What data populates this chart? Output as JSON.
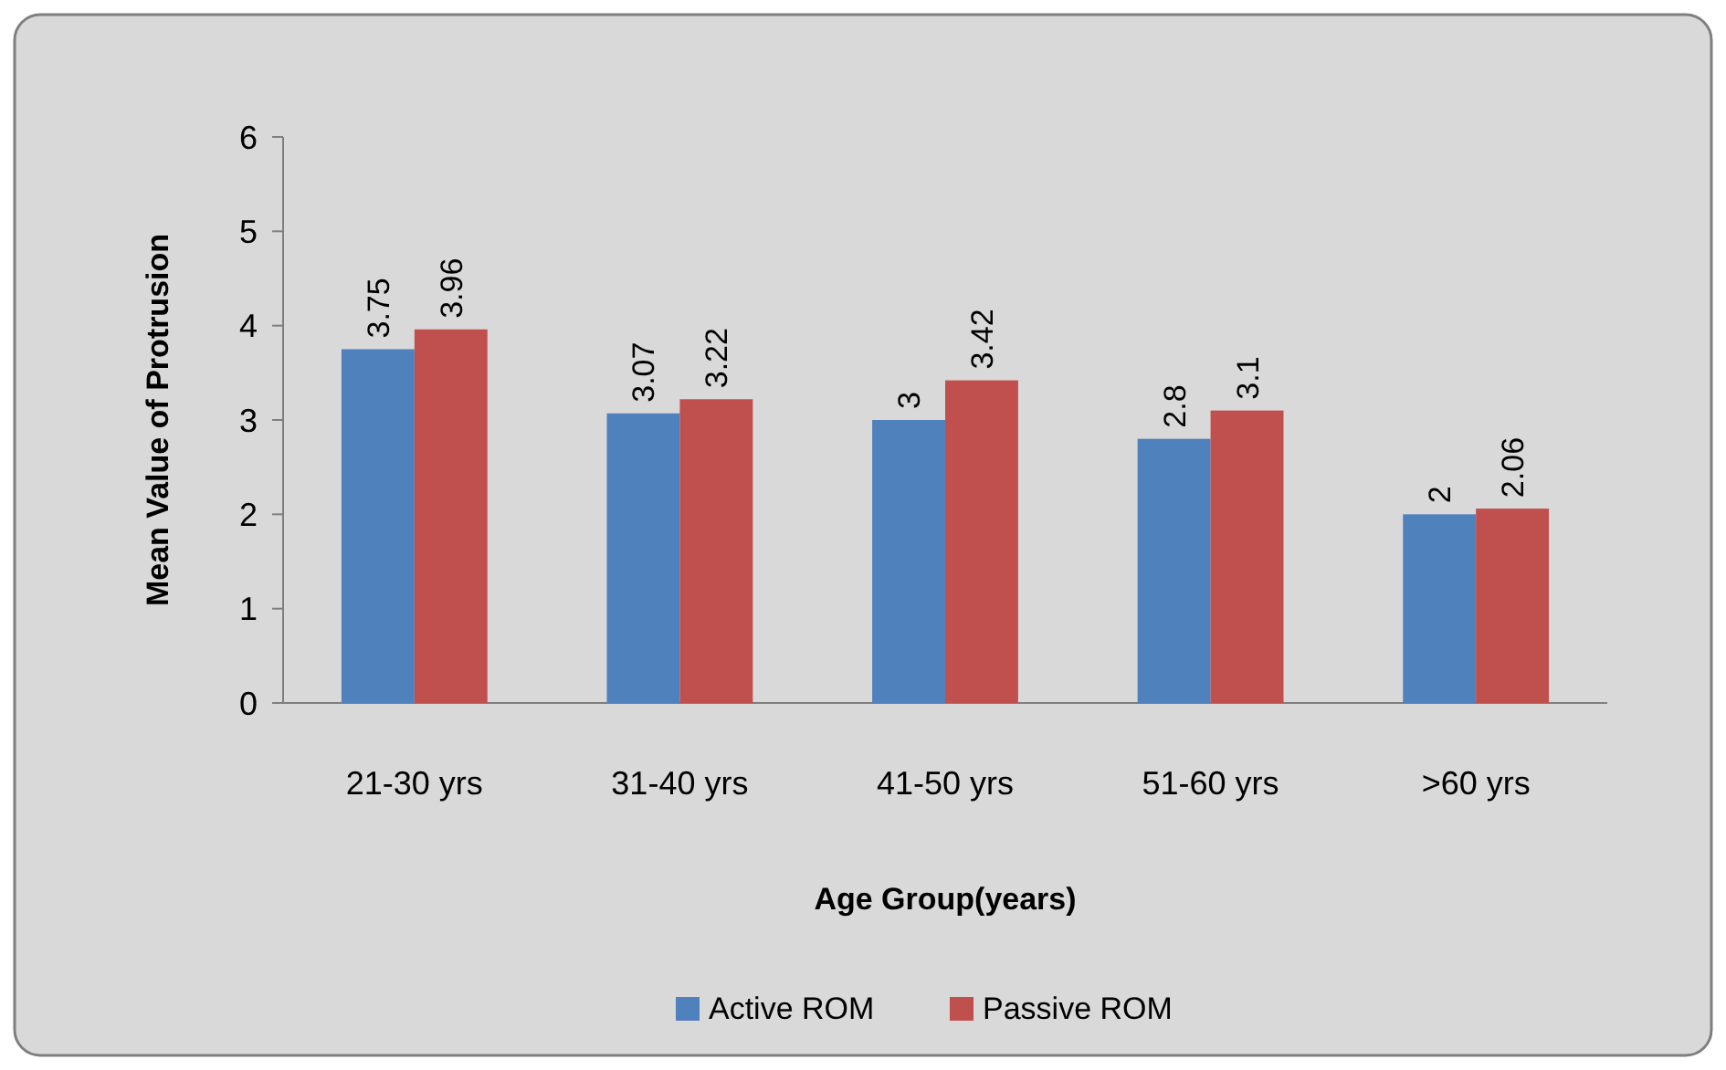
{
  "chart_data": {
    "type": "bar",
    "xlabel": "Age Group(years)",
    "ylabel": "Mean Value of Protrusion",
    "categories": [
      "21-30 yrs",
      "31-40 yrs",
      "41-50 yrs",
      "51-60 yrs",
      ">60 yrs"
    ],
    "series": [
      {
        "name": "Active ROM",
        "color": "#4f81bd",
        "values": [
          3.75,
          3.07,
          3,
          2.8,
          2
        ]
      },
      {
        "name": "Passive ROM",
        "color": "#c0504d",
        "values": [
          3.96,
          3.22,
          3.42,
          3.1,
          2.06
        ]
      }
    ],
    "ylim": [
      0,
      6
    ],
    "yticks": [
      0,
      1,
      2,
      3,
      4,
      5,
      6
    ],
    "data_labels": true,
    "legend": "bottom",
    "grid": false
  }
}
